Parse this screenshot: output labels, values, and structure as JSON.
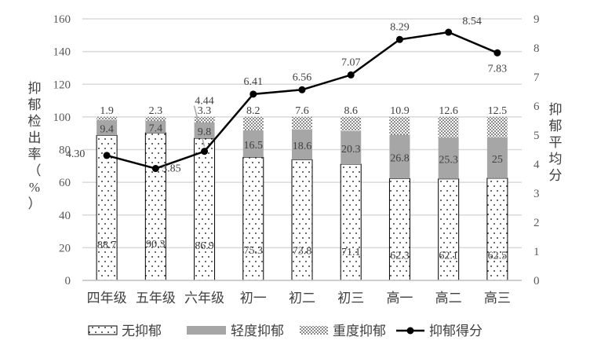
{
  "chart_data": {
    "type": "bar+line",
    "categories": [
      "四年级",
      "五年级",
      "六年级",
      "初一",
      "初二",
      "初三",
      "高一",
      "高二",
      "高三"
    ],
    "series": [
      {
        "name": "无抑郁",
        "type": "stacked-bar",
        "pattern": "sparse-dots",
        "values": [
          88.7,
          90.3,
          86.9,
          75.3,
          73.8,
          71.1,
          62.3,
          62.1,
          62.5
        ]
      },
      {
        "name": "轻度抑郁",
        "type": "stacked-bar",
        "color": "#a6a6a6",
        "values": [
          9.4,
          7.4,
          9.8,
          16.5,
          18.6,
          20.3,
          26.8,
          25.3,
          25
        ]
      },
      {
        "name": "重度抑郁",
        "type": "stacked-bar",
        "pattern": "dense-dots",
        "values": [
          1.9,
          2.3,
          3.3,
          8.2,
          7.6,
          8.6,
          10.9,
          12.6,
          12.5
        ]
      },
      {
        "name": "抑郁得分",
        "type": "line",
        "axis": "right",
        "color": "#000000",
        "values": [
          4.3,
          3.85,
          4.44,
          6.41,
          6.56,
          7.07,
          8.29,
          8.54,
          7.83
        ],
        "labels": [
          "4.30",
          "3.85",
          "4.44",
          "6.41",
          "6.56",
          "7.07",
          "8.29",
          "8.54",
          "7.83"
        ]
      }
    ],
    "ylabel": "抑郁检出率（%）",
    "y2label": "抑郁平均分",
    "ylim": [
      0,
      160
    ],
    "yticks": [
      0,
      20,
      40,
      60,
      80,
      100,
      120,
      140,
      160
    ],
    "y2lim": [
      0,
      9
    ],
    "y2ticks": [
      0,
      1,
      2,
      3,
      4,
      5,
      6,
      7,
      8,
      9
    ],
    "grid": true,
    "legend": "bottom"
  }
}
